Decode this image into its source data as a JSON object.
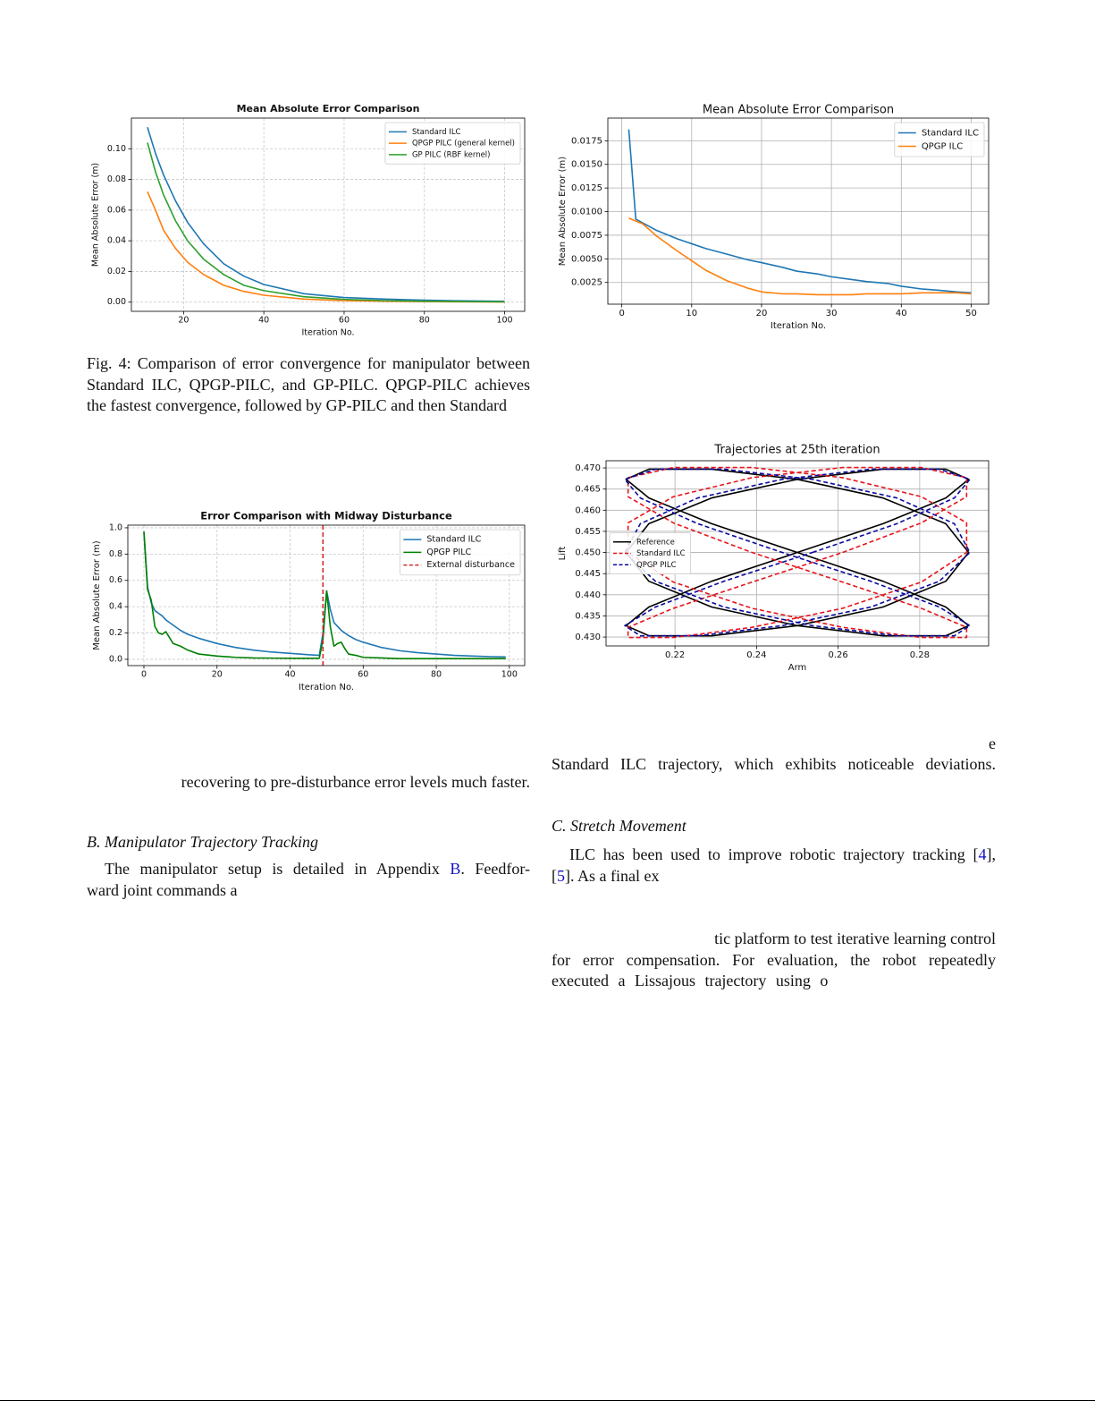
{
  "chart_data": [
    {
      "type": "line",
      "title": "Mean Absolute Error Comparison",
      "x_label": "Iteration No.",
      "y_label": "Mean Absolute Error (m)",
      "x": [
        11,
        13,
        15,
        18,
        21,
        25,
        30,
        35,
        40,
        50,
        60,
        70,
        80,
        90,
        100
      ],
      "series": [
        {
          "name": "Standard ILC",
          "color": "#1f77b4",
          "values": [
            0.114,
            0.097,
            0.083,
            0.066,
            0.052,
            0.038,
            0.025,
            0.017,
            0.0115,
            0.0055,
            0.003,
            0.002,
            0.0013,
            0.0008,
            0.0005
          ]
        },
        {
          "name": "QPGP PILC (general kernel)",
          "color": "#ff7f0e",
          "values": [
            0.072,
            0.06,
            0.047,
            0.035,
            0.026,
            0.018,
            0.011,
            0.007,
            0.0045,
            0.002,
            0.001,
            0.0006,
            0.0004,
            0.0002,
            0.0001
          ]
        },
        {
          "name": "GP PILC (RBF kernel)",
          "color": "#2ca02c",
          "values": [
            0.104,
            0.085,
            0.07,
            0.053,
            0.04,
            0.028,
            0.018,
            0.011,
            0.0075,
            0.0035,
            0.0018,
            0.001,
            0.0006,
            0.0004,
            0.0002
          ]
        }
      ],
      "xlim": [
        7,
        105
      ],
      "ylim": [
        -0.006,
        0.12
      ],
      "xticks": [
        20,
        40,
        60,
        80,
        100
      ],
      "yticks": [
        {
          "value": 0,
          "label": "0.00"
        },
        0.02,
        0.04,
        0.06,
        0.08,
        {
          "value": 0.1,
          "label": "0.10"
        }
      ],
      "grid": true,
      "grid_style": "dashed",
      "legend": "upper right"
    },
    {
      "type": "line",
      "title": "Mean Absolute Error Comparison",
      "x_label": "Iteration No.",
      "y_label": "Mean Absolute Error (m)",
      "x": [
        1,
        2,
        3,
        5,
        8,
        10,
        12,
        15,
        18,
        20,
        23,
        25,
        28,
        30,
        33,
        35,
        38,
        40,
        43,
        45,
        48,
        50
      ],
      "series": [
        {
          "name": "Standard ILC",
          "color": "#1f77b4",
          "values": [
            0.0187,
            0.0092,
            0.0088,
            0.008,
            0.0071,
            0.0066,
            0.0061,
            0.0055,
            0.0049,
            0.0046,
            0.0041,
            0.0037,
            0.0034,
            0.0031,
            0.0028,
            0.0026,
            0.0024,
            0.0021,
            0.0018,
            0.0017,
            0.0015,
            0.0014
          ]
        },
        {
          "name": "QPGP ILC",
          "color": "#ff7f0e",
          "values": [
            0.0093,
            0.009,
            0.0087,
            0.0074,
            0.0058,
            0.0048,
            0.0038,
            0.0027,
            0.0019,
            0.0015,
            0.0013,
            0.0013,
            0.0012,
            0.0012,
            0.0012,
            0.0013,
            0.0013,
            0.0013,
            0.0014,
            0.0014,
            0.0014,
            0.0013
          ]
        }
      ],
      "xlim": [
        -2,
        52.5
      ],
      "ylim": [
        0.0002,
        0.0199
      ],
      "xticks": [
        0,
        10,
        20,
        30,
        40,
        50
      ],
      "yticks": [
        0.0025,
        {
          "value": 0.005,
          "label": "0.0050"
        },
        0.0075,
        {
          "value": 0.01,
          "label": "0.0100"
        },
        0.0125,
        {
          "value": 0.015,
          "label": "0.0150"
        },
        0.0175
      ],
      "grid": true,
      "grid_style": "solid",
      "legend": "upper right"
    },
    {
      "type": "line",
      "title": "Error Comparison with Midway Disturbance",
      "x_label": "Iteration No.",
      "y_label": "Mean Absolute Error (m)",
      "x": [
        0,
        1,
        2,
        3,
        4,
        5,
        6,
        8,
        10,
        12,
        15,
        20,
        25,
        30,
        35,
        40,
        45,
        48,
        49,
        50,
        51,
        52,
        53,
        54,
        55,
        56,
        58,
        60,
        65,
        70,
        75,
        80,
        85,
        90,
        95,
        99
      ],
      "series": [
        {
          "name": "Standard ILC",
          "color": "#1f77b4",
          "values": [
            0.97,
            0.55,
            0.43,
            0.37,
            0.35,
            0.33,
            0.3,
            0.26,
            0.22,
            0.19,
            0.16,
            0.12,
            0.09,
            0.07,
            0.055,
            0.045,
            0.035,
            0.03,
            0.2,
            0.52,
            0.38,
            0.28,
            0.25,
            0.22,
            0.2,
            0.18,
            0.15,
            0.13,
            0.09,
            0.065,
            0.05,
            0.04,
            0.03,
            0.025,
            0.02,
            0.018
          ]
        },
        {
          "name": "QPGP PILC",
          "color": "#008000",
          "values": [
            0.97,
            0.53,
            0.45,
            0.25,
            0.2,
            0.19,
            0.21,
            0.12,
            0.1,
            0.07,
            0.04,
            0.025,
            0.015,
            0.01,
            0.009,
            0.008,
            0.008,
            0.008,
            0.15,
            0.52,
            0.25,
            0.1,
            0.12,
            0.13,
            0.08,
            0.04,
            0.03,
            0.015,
            0.01,
            0.005,
            0.005,
            0.005,
            0.005,
            0.005,
            0.005,
            0.005
          ]
        }
      ],
      "vlines": [
        {
          "name": "External disturbance",
          "color": "#d62728",
          "x": 49,
          "linestyle": "dashed"
        }
      ],
      "xlim": [
        -4.4,
        104.2
      ],
      "ylim": [
        -0.048,
        1.02
      ],
      "xticks": [
        0,
        20,
        40,
        60,
        80,
        100
      ],
      "yticks": [
        {
          "value": 0,
          "label": "0.0"
        },
        0.2,
        0.4,
        0.6,
        0.8,
        {
          "value": 1,
          "label": "1.0"
        }
      ],
      "grid": true,
      "grid_style": "dashed",
      "legend": "upper right"
    },
    {
      "type": "line",
      "title": "Trajectories at 25th iteration",
      "x_label": "Arm",
      "y_label": "Lift",
      "series": [
        {
          "name": "Reference",
          "color": "#000000",
          "linestyle": "solid",
          "x": [
            0.25,
            0.271,
            0.2864,
            0.292,
            0.2864,
            0.271,
            0.25,
            0.229,
            0.2136,
            0.208,
            0.2136,
            0.229,
            0.25,
            0.271,
            0.2864,
            0.292,
            0.2864,
            0.271,
            0.25,
            0.229,
            0.2136,
            0.208,
            0.2136,
            0.229,
            0.25,
            0.271,
            0.2864,
            0.292,
            0.2864,
            0.271,
            0.25,
            0.229,
            0.2136,
            0.208,
            0.2136,
            0.229,
            0.25
          ],
          "values": [
            0.45,
            0.4568,
            0.4629,
            0.4673,
            0.4697,
            0.4697,
            0.4673,
            0.4629,
            0.4568,
            0.45,
            0.4432,
            0.4371,
            0.4327,
            0.4303,
            0.4303,
            0.4327,
            0.4371,
            0.4432,
            0.45,
            0.4568,
            0.4629,
            0.4673,
            0.4697,
            0.4697,
            0.4673,
            0.4629,
            0.4568,
            0.45,
            0.4432,
            0.4371,
            0.4327,
            0.4303,
            0.4303,
            0.4327,
            0.4371,
            0.4432,
            0.45
          ]
        },
        {
          "name": "Standard ILC",
          "color": "#e8141c",
          "linestyle": "dashed",
          "x": [
            0.2611,
            0.2804,
            0.2915,
            0.2915,
            0.2804,
            0.2611,
            0.2389,
            0.2196,
            0.2085,
            0.2085,
            0.2196,
            0.2389,
            0.2611,
            0.2804,
            0.2915,
            0.2915,
            0.2804,
            0.2611,
            0.2389,
            0.2196,
            0.2085,
            0.2085,
            0.2196,
            0.2389,
            0.2611,
            0.2804,
            0.2915,
            0.2915,
            0.2804,
            0.2611,
            0.2389,
            0.2196,
            0.2085,
            0.2085,
            0.2196,
            0.2389,
            0.2611
          ],
          "values": [
            0.45,
            0.457,
            0.4632,
            0.4677,
            0.4701,
            0.4701,
            0.4677,
            0.4632,
            0.457,
            0.45,
            0.443,
            0.4368,
            0.4323,
            0.4299,
            0.4299,
            0.4323,
            0.4368,
            0.443,
            0.45,
            0.457,
            0.4632,
            0.4677,
            0.4701,
            0.4701,
            0.4677,
            0.4632,
            0.457,
            0.45,
            0.443,
            0.4368,
            0.4323,
            0.4299,
            0.4299,
            0.4323,
            0.4368,
            0.443,
            0.45
          ]
        },
        {
          "name": "QPGP PILC",
          "color": "#0a0aa0",
          "linestyle": "dashed",
          "x": [
            0.2537,
            0.2744,
            0.2885,
            0.2923,
            0.2848,
            0.268,
            0.2463,
            0.2256,
            0.2115,
            0.2077,
            0.2152,
            0.232,
            0.2537,
            0.2744,
            0.2885,
            0.2923,
            0.2848,
            0.268,
            0.2463,
            0.2256,
            0.2115,
            0.2077,
            0.2152,
            0.232,
            0.2537,
            0.2744,
            0.2885,
            0.2923,
            0.2848,
            0.268,
            0.2463,
            0.2256,
            0.2115,
            0.2077,
            0.2152,
            0.232,
            0.2537
          ],
          "values": [
            0.45,
            0.4568,
            0.4629,
            0.4673,
            0.4697,
            0.4697,
            0.4673,
            0.4629,
            0.4568,
            0.45,
            0.4432,
            0.4371,
            0.4327,
            0.4303,
            0.4303,
            0.4327,
            0.4371,
            0.4432,
            0.45,
            0.4568,
            0.4629,
            0.4673,
            0.4697,
            0.4697,
            0.4673,
            0.4629,
            0.4568,
            0.45,
            0.4432,
            0.4371,
            0.4327,
            0.4303,
            0.4303,
            0.4327,
            0.4371,
            0.4432,
            0.45
          ]
        }
      ],
      "xlim": [
        0.2031,
        0.2969
      ],
      "ylim": [
        0.4279,
        0.4717
      ],
      "xticks": [
        0.22,
        0.24,
        0.26,
        0.28
      ],
      "yticks": [
        {
          "value": 0.43,
          "label": "0.430"
        },
        0.435,
        {
          "value": 0.44,
          "label": "0.440"
        },
        0.445,
        {
          "value": 0.45,
          "label": "0.450"
        },
        0.455,
        {
          "value": 0.46,
          "label": "0.460"
        },
        0.465,
        {
          "value": 0.47,
          "label": "0.470"
        }
      ],
      "grid": true,
      "grid_style": "solid",
      "legend": "center left"
    }
  ],
  "text": {
    "caption": "Fig. 4: Comparison of error convergence for manipulator between Standard ILC, QPGP-PILC, and GP-PILC. QPGP-PILC achieves the fastest convergence, followed by GP-PILC and then Standard",
    "left_fragment": "recovering to pre-disturbance error levels much faster.",
    "section_b": {
      "heading": "B. Manipulator Trajectory Tracking",
      "lines": [
        [
          "The manipulator setup is detailed in Appendix ",
          "B",
          ". Feedfor-"
        ],
        [
          "ward joint commands a"
        ]
      ]
    },
    "right_fragment": [
      "e",
      "Standard ILC trajectory, which exhibits noticeable deviations."
    ],
    "section_c": {
      "heading": "C. Stretch Movement",
      "lines": [
        [
          "ILC has been used to improve robotic trajectory tracking [",
          "4",
          "],"
        ],
        [
          "[",
          "5",
          "]. As a final ex"
        ]
      ],
      "continuation": [
        "tic platform to test iterative learning control",
        "for error compensation. For evaluation, the robot repeatedly",
        "executed a Lissajous trajectory using o"
      ]
    }
  }
}
